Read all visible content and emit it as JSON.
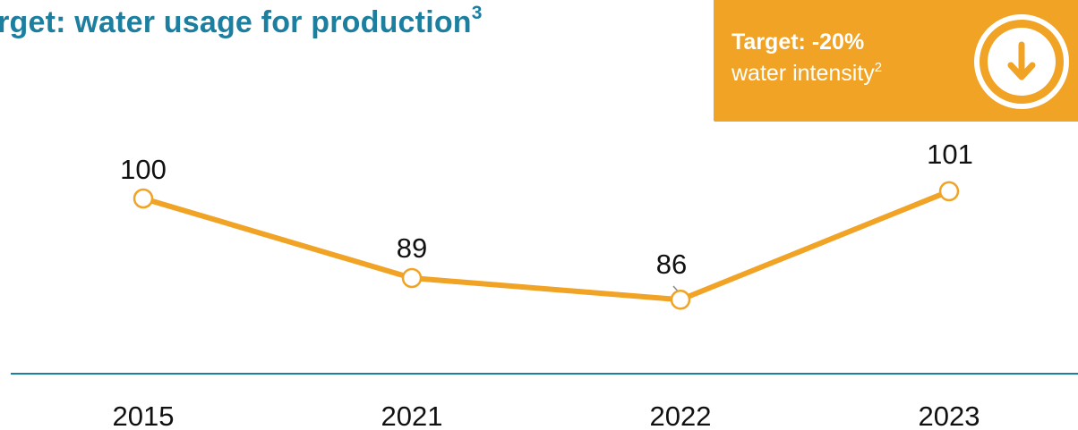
{
  "title": {
    "text": "arget: water usage for production",
    "superscript": "3"
  },
  "target_box": {
    "headline": "Target: -20%",
    "subtext": "water intensity",
    "subtext_superscript": "2",
    "icon": "arrow-down-circle-icon",
    "background_color": "#f0a324"
  },
  "chart_data": {
    "type": "line",
    "categories": [
      "2015",
      "2021",
      "2022",
      "2023"
    ],
    "series": [
      {
        "values": [
          100,
          89,
          86,
          101
        ]
      }
    ],
    "data_labels": [
      "100",
      "89",
      "86",
      "101"
    ],
    "line_color": "#f0a324",
    "axis_color": "#1c7fa0",
    "grid": false
  }
}
